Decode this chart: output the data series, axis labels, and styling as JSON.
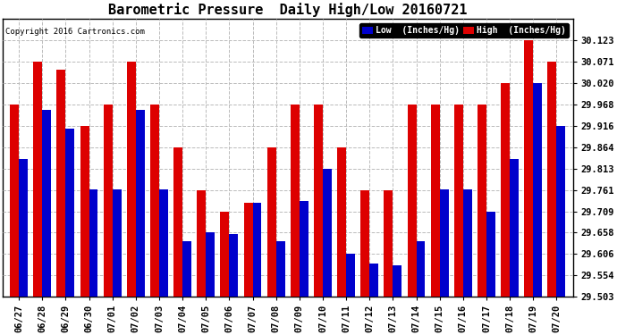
{
  "title": "Barometric Pressure  Daily High/Low 20160721",
  "copyright": "Copyright 2016 Cartronics.com",
  "legend_low": "Low  (Inches/Hg)",
  "legend_high": "High  (Inches/Hg)",
  "dates": [
    "06/27",
    "06/28",
    "06/29",
    "06/30",
    "07/01",
    "07/02",
    "07/03",
    "07/04",
    "07/05",
    "07/06",
    "07/07",
    "07/08",
    "07/09",
    "07/10",
    "07/11",
    "07/12",
    "07/13",
    "07/14",
    "07/15",
    "07/16",
    "07/17",
    "07/18",
    "07/19",
    "07/20"
  ],
  "low_values": [
    29.836,
    29.955,
    29.91,
    29.762,
    29.762,
    29.955,
    29.762,
    29.638,
    29.658,
    29.654,
    29.73,
    29.638,
    29.735,
    29.813,
    29.606,
    29.583,
    29.578,
    29.638,
    29.762,
    29.762,
    29.709,
    29.836,
    30.02,
    29.916
  ],
  "high_values": [
    29.968,
    30.071,
    30.052,
    29.916,
    29.968,
    30.071,
    29.968,
    29.864,
    29.761,
    29.709,
    29.731,
    29.864,
    29.968,
    29.968,
    29.864,
    29.761,
    29.761,
    29.968,
    29.968,
    29.968,
    29.968,
    30.02,
    30.123,
    30.071
  ],
  "ylim_min": 29.503,
  "ylim_max": 30.175,
  "yticks": [
    29.503,
    29.554,
    29.606,
    29.658,
    29.709,
    29.761,
    29.813,
    29.864,
    29.916,
    29.968,
    30.02,
    30.071,
    30.123
  ],
  "color_low": "#0000cc",
  "color_high": "#dd0000",
  "background_color": "#ffffff",
  "grid_color": "#bbbbbb",
  "title_fontsize": 11,
  "tick_fontsize": 7.5,
  "bar_width": 0.38
}
